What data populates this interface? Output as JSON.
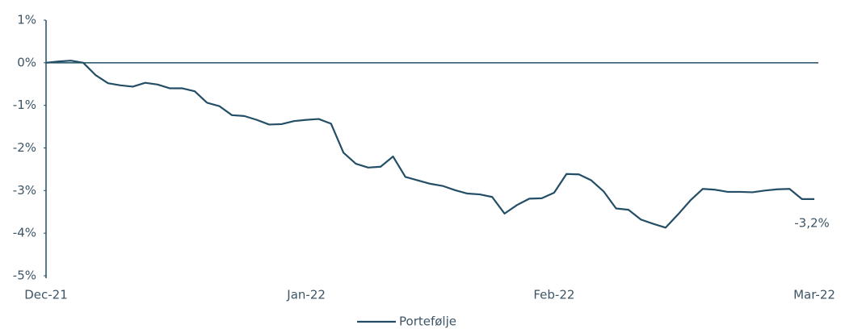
{
  "chart_data": {
    "type": "line",
    "categories": [
      "Dec-21",
      null,
      null,
      null,
      null,
      null,
      null,
      null,
      null,
      null,
      null,
      null,
      null,
      null,
      null,
      null,
      null,
      null,
      null,
      null,
      null,
      "Jan-22",
      null,
      null,
      null,
      null,
      null,
      null,
      null,
      null,
      null,
      null,
      null,
      null,
      null,
      null,
      null,
      null,
      null,
      null,
      null,
      "Feb-22",
      null,
      null,
      null,
      null,
      null,
      null,
      null,
      null,
      null,
      null,
      null,
      null,
      null,
      null,
      null,
      null,
      null,
      null,
      null,
      null,
      "Mar-22"
    ],
    "series": [
      {
        "name": "Portefølje",
        "color": "#234e66",
        "values": [
          0,
          0.03,
          0.05,
          0.0,
          -0.29,
          -0.48,
          -0.53,
          -0.56,
          -0.47,
          -0.51,
          -0.6,
          -0.6,
          -0.67,
          -0.94,
          -1.02,
          -1.23,
          -1.25,
          -1.34,
          -1.45,
          -1.44,
          -1.37,
          -1.34,
          -1.32,
          -1.43,
          -2.11,
          -2.37,
          -2.46,
          -2.44,
          -2.2,
          -2.68,
          -2.76,
          -2.84,
          -2.89,
          -2.99,
          -3.07,
          -3.09,
          -3.15,
          -3.54,
          -3.34,
          -3.19,
          -3.18,
          -3.05,
          -2.61,
          -2.62,
          -2.76,
          -3.02,
          -3.42,
          -3.45,
          -3.68,
          -3.78,
          -3.87,
          -3.56,
          -3.23,
          -2.96,
          -2.98,
          -3.03,
          -3.03,
          -3.04,
          -3.0,
          -2.97,
          -2.96,
          -3.2,
          -3.2
        ],
        "value_labels": [
          null,
          null,
          null,
          null,
          null,
          null,
          null,
          null,
          null,
          null,
          null,
          null,
          null,
          null,
          null,
          null,
          null,
          null,
          null,
          null,
          null,
          null,
          null,
          null,
          null,
          null,
          null,
          null,
          null,
          null,
          null,
          null,
          null,
          null,
          null,
          null,
          null,
          null,
          null,
          null,
          null,
          null,
          null,
          null,
          null,
          null,
          null,
          null,
          null,
          null,
          null,
          null,
          null,
          null,
          null,
          null,
          null,
          null,
          null,
          null,
          null,
          null,
          "-3,2%"
        ]
      }
    ],
    "ylim": [
      -5,
      1
    ],
    "yticks": [
      {
        "value": 1,
        "label": "1%"
      },
      {
        "value": 0,
        "label": "0%"
      },
      {
        "value": -1,
        "label": "-1%"
      },
      {
        "value": -2,
        "label": "-2%"
      },
      {
        "value": -3,
        "label": "-3%"
      },
      {
        "value": -4,
        "label": "-4%"
      },
      {
        "value": -5,
        "label": "-5%"
      }
    ],
    "grid": false,
    "legend": "bottom"
  }
}
